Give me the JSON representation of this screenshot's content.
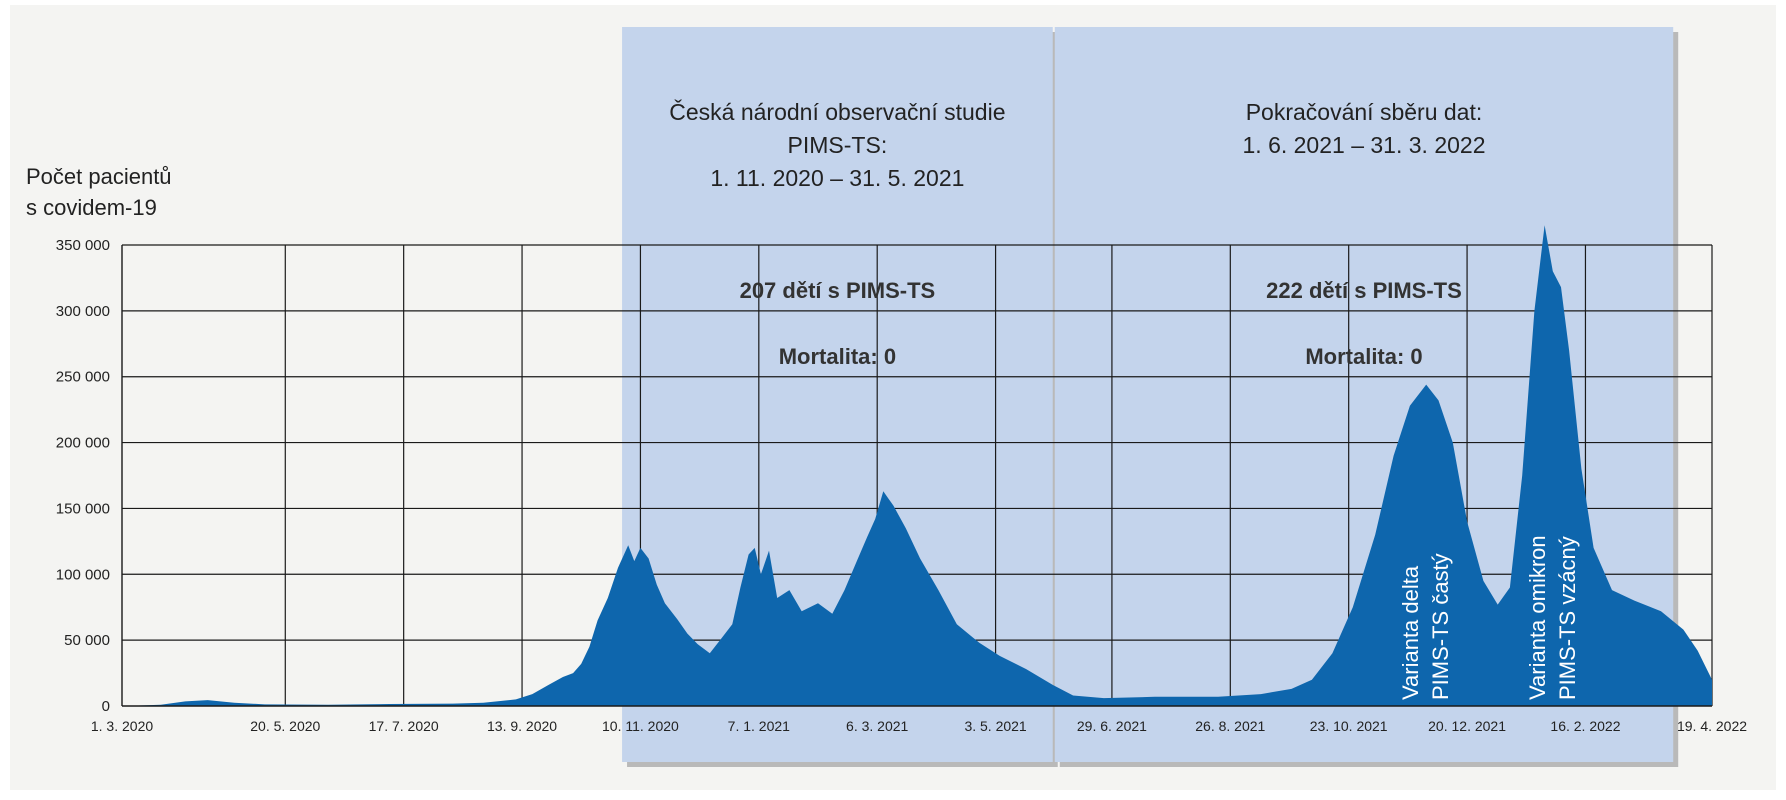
{
  "chart_data": {
    "type": "area",
    "ylabel_lines": [
      "Počet pacientů",
      "s covidem-19"
    ],
    "y_ticks": [
      0,
      50000,
      100000,
      150000,
      200000,
      250000,
      300000,
      350000
    ],
    "y_tick_labels": [
      "0",
      "50 000",
      "100 000",
      "150 000",
      "200 000",
      "250 000",
      "300 000",
      "350 000"
    ],
    "ylim": [
      0,
      350000
    ],
    "x_range": [
      "2020-03-01",
      "2022-04-19"
    ],
    "x_ticks": [
      {
        "date": "2020-03-01",
        "label": "1. 3. 2020"
      },
      {
        "date": "2020-05-20",
        "label": "20. 5. 2020"
      },
      {
        "date": "2020-07-17",
        "label": "17. 7. 2020"
      },
      {
        "date": "2020-09-13",
        "label": "13. 9. 2020"
      },
      {
        "date": "2020-11-10",
        "label": "10. 11. 2020"
      },
      {
        "date": "2021-01-07",
        "label": "7. 1. 2021"
      },
      {
        "date": "2021-03-06",
        "label": "6. 3. 2021"
      },
      {
        "date": "2021-05-03",
        "label": "3. 5. 2021"
      },
      {
        "date": "2021-06-29",
        "label": "29. 6. 2021"
      },
      {
        "date": "2021-08-26",
        "label": "26. 8. 2021"
      },
      {
        "date": "2021-10-23",
        "label": "23. 10. 2021"
      },
      {
        "date": "2021-12-20",
        "label": "20. 12. 2021"
      },
      {
        "date": "2022-02-16",
        "label": "16. 2. 2022"
      },
      {
        "date": "2022-04-19",
        "label": "19. 4. 2022"
      }
    ],
    "grid": true,
    "series": [
      {
        "color": "#0e66ad",
        "points": [
          [
            "2020-03-01",
            0
          ],
          [
            "2020-03-20",
            1000
          ],
          [
            "2020-04-01",
            3500
          ],
          [
            "2020-04-12",
            4500
          ],
          [
            "2020-04-25",
            2500
          ],
          [
            "2020-05-10",
            1200
          ],
          [
            "2020-06-10",
            1000
          ],
          [
            "2020-07-10",
            1500
          ],
          [
            "2020-08-10",
            1800
          ],
          [
            "2020-08-25",
            2500
          ],
          [
            "2020-09-10",
            5000
          ],
          [
            "2020-09-18",
            9000
          ],
          [
            "2020-09-26",
            16000
          ],
          [
            "2020-10-03",
            22000
          ],
          [
            "2020-10-08",
            25000
          ],
          [
            "2020-10-12",
            32000
          ],
          [
            "2020-10-16",
            45000
          ],
          [
            "2020-10-20",
            65000
          ],
          [
            "2020-10-25",
            82000
          ],
          [
            "2020-10-30",
            105000
          ],
          [
            "2020-11-04",
            122000
          ],
          [
            "2020-11-07",
            110000
          ],
          [
            "2020-11-10",
            120000
          ],
          [
            "2020-11-14",
            112000
          ],
          [
            "2020-11-18",
            92000
          ],
          [
            "2020-11-22",
            78000
          ],
          [
            "2020-11-28",
            66000
          ],
          [
            "2020-12-03",
            55000
          ],
          [
            "2020-12-08",
            47000
          ],
          [
            "2020-12-14",
            40000
          ],
          [
            "2020-12-20",
            52000
          ],
          [
            "2020-12-25",
            62000
          ],
          [
            "2020-12-29",
            90000
          ],
          [
            "2021-01-02",
            115000
          ],
          [
            "2021-01-05",
            120000
          ],
          [
            "2021-01-08",
            100000
          ],
          [
            "2021-01-12",
            118000
          ],
          [
            "2021-01-16",
            82000
          ],
          [
            "2021-01-22",
            88000
          ],
          [
            "2021-01-28",
            72000
          ],
          [
            "2021-02-05",
            78000
          ],
          [
            "2021-02-12",
            70000
          ],
          [
            "2021-02-18",
            88000
          ],
          [
            "2021-02-24",
            110000
          ],
          [
            "2021-03-01",
            128000
          ],
          [
            "2021-03-05",
            142000
          ],
          [
            "2021-03-09",
            163000
          ],
          [
            "2021-03-14",
            152000
          ],
          [
            "2021-03-20",
            135000
          ],
          [
            "2021-03-27",
            112000
          ],
          [
            "2021-04-05",
            88000
          ],
          [
            "2021-04-14",
            62000
          ],
          [
            "2021-04-25",
            48000
          ],
          [
            "2021-05-05",
            38000
          ],
          [
            "2021-05-18",
            28000
          ],
          [
            "2021-05-31",
            16000
          ],
          [
            "2021-06-10",
            8000
          ],
          [
            "2021-06-25",
            6000
          ],
          [
            "2021-07-20",
            7000
          ],
          [
            "2021-08-20",
            7000
          ],
          [
            "2021-09-10",
            9000
          ],
          [
            "2021-09-25",
            13000
          ],
          [
            "2021-10-05",
            20000
          ],
          [
            "2021-10-15",
            40000
          ],
          [
            "2021-10-25",
            75000
          ],
          [
            "2021-11-05",
            130000
          ],
          [
            "2021-11-14",
            190000
          ],
          [
            "2021-11-22",
            228000
          ],
          [
            "2021-11-30",
            244000
          ],
          [
            "2021-12-06",
            232000
          ],
          [
            "2021-12-13",
            200000
          ],
          [
            "2021-12-20",
            140000
          ],
          [
            "2021-12-28",
            95000
          ],
          [
            "2022-01-04",
            77000
          ],
          [
            "2022-01-10",
            90000
          ],
          [
            "2022-01-16",
            175000
          ],
          [
            "2022-01-22",
            300000
          ],
          [
            "2022-01-27",
            365000
          ],
          [
            "2022-01-31",
            330000
          ],
          [
            "2022-02-04",
            318000
          ],
          [
            "2022-02-08",
            270000
          ],
          [
            "2022-02-14",
            180000
          ],
          [
            "2022-02-20",
            120000
          ],
          [
            "2022-03-01",
            88000
          ],
          [
            "2022-03-12",
            80000
          ],
          [
            "2022-03-25",
            72000
          ],
          [
            "2022-04-05",
            58000
          ],
          [
            "2022-04-12",
            42000
          ],
          [
            "2022-04-19",
            20000
          ]
        ]
      }
    ],
    "annotations": {
      "panel1": {
        "range": [
          "2020-11-01",
          "2021-05-31"
        ],
        "title_lines": [
          "Česká národní observační studie",
          "PIMS-TS:",
          "1. 11. 2020 – 31. 5. 2021"
        ],
        "count": "207 dětí s PIMS-TS",
        "mortality": "Mortalita: 0"
      },
      "panel2": {
        "range": [
          "2021-06-01",
          "2022-03-31"
        ],
        "title_lines": [
          "Pokračování sběru dat:",
          "1. 6. 2021 – 31. 3. 2022"
        ],
        "count": "222 dětí s PIMS-TS",
        "mortality": "Mortalita: 0"
      },
      "variants": [
        {
          "date": "2021-11-30",
          "lines": [
            "Varianta delta",
            "PIMS-TS častý"
          ]
        },
        {
          "date": "2022-01-31",
          "lines": [
            "Varianta omikron",
            "PIMS-TS vzácný"
          ]
        }
      ]
    },
    "colors": {
      "background": "#f4f4f2",
      "panel": "#c4d4ec",
      "area": "#0e66ad",
      "grid": "#1a1a1a"
    }
  }
}
